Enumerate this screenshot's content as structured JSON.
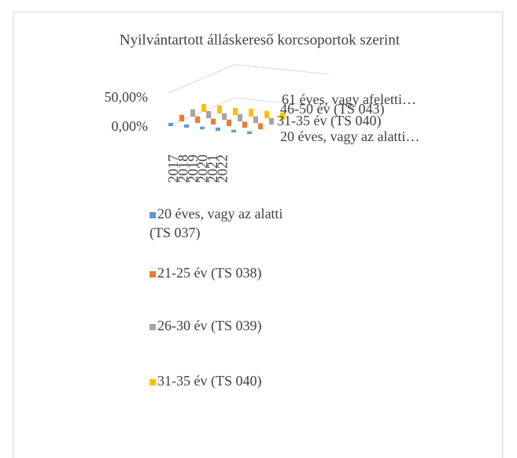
{
  "chart_data": {
    "type": "bar3d",
    "title": "Nyilvántartott álláskereső korcsoportok szerint",
    "categories": [
      "2017",
      "2018",
      "2019",
      "2020",
      "2021",
      "2022"
    ],
    "series": [
      {
        "name": "20 éves, vagy az alatti (TS 037)",
        "color": "#5b9bd5",
        "values": [
          5,
          5,
          4,
          5,
          4,
          4
        ]
      },
      {
        "name": "21-25 év (TS 038)",
        "color": "#ed7d31",
        "values": [
          10,
          10,
          9,
          10,
          9,
          9
        ]
      },
      {
        "name": "26-30 év (TS 039)",
        "color": "#a5a5a5",
        "values": [
          11,
          11,
          10,
          11,
          10,
          10
        ]
      },
      {
        "name": "31-35 év (TS 040)",
        "color": "#ffc000",
        "values": [
          12,
          12,
          11,
          12,
          11,
          11
        ]
      }
    ],
    "depth_labels": [
      "61 éves, vagy afeletti…",
      "46-50 év (TS 043)",
      "31-35 év (TS 040)",
      "20 éves, vagy az alatti…"
    ],
    "ylim": [
      0,
      50
    ],
    "yticks": [
      {
        "value": 0,
        "label": "0,00%"
      },
      {
        "value": 50,
        "label": "50,00%"
      }
    ],
    "grid": true
  }
}
